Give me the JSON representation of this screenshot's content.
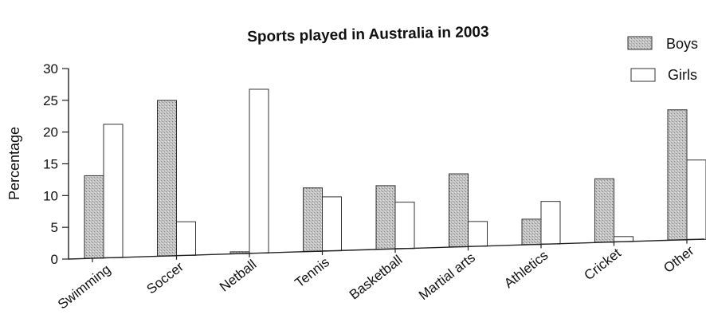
{
  "chart_data": {
    "type": "bar",
    "title": "Sports played in Australia in 2003",
    "xlabel": "",
    "ylabel": "Percentage",
    "ylim": [
      0,
      30
    ],
    "yticks": [
      0,
      5,
      10,
      15,
      20,
      25,
      30
    ],
    "grid": false,
    "legend_position": "top-right",
    "categories": [
      "Swimming",
      "Soccer",
      "Netball",
      "Tennis",
      "Basketball",
      "Martial arts",
      "Athletics",
      "Cricket",
      "Other"
    ],
    "series": [
      {
        "name": "Boys",
        "values": [
          13,
          24.5,
          0.3,
          10,
          10,
          11.5,
          4,
          10,
          20.5
        ],
        "color": "#bdbdbd",
        "pattern": "stipple"
      },
      {
        "name": "Girls",
        "values": [
          21,
          5.3,
          25.8,
          8.5,
          7.3,
          3.9,
          6.7,
          0.8,
          12.5
        ],
        "color": "#ffffff",
        "pattern": "none"
      }
    ]
  }
}
